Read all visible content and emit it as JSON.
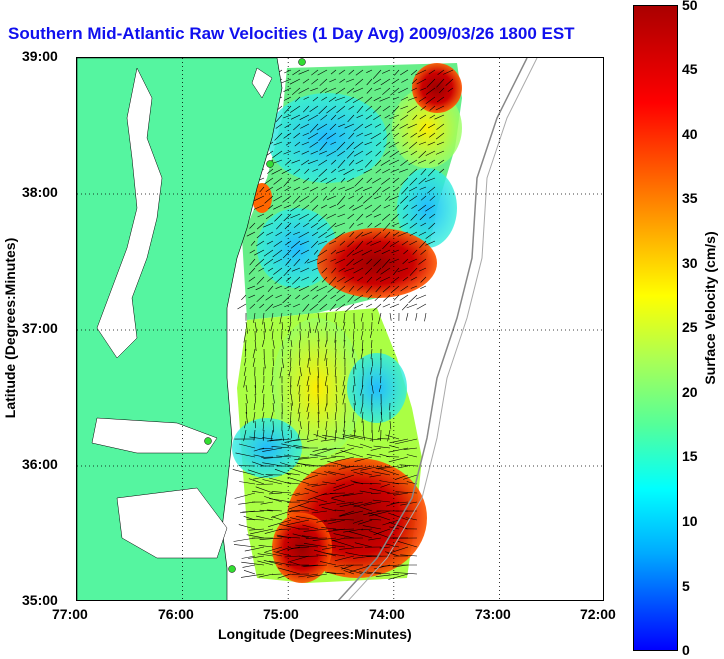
{
  "title": "Southern Mid-Atlantic Raw Velocities (1 Day Avg) 2009/03/26 1800 EST",
  "map": {
    "xlabel": "Longitude (Degrees:Minutes)",
    "ylabel": "Latitude (Degrees:Minutes)",
    "lon_range": [
      -77,
      -72
    ],
    "lat_range": [
      35,
      39
    ],
    "x_ticks": [
      "77:00",
      "76:00",
      "75:00",
      "74:00",
      "73:00",
      "72:00"
    ],
    "y_ticks": [
      "39:00",
      "38:00",
      "37:00",
      "36:00",
      "35:00"
    ],
    "grid": "dotted",
    "land_color": "#55f5a0",
    "station_color": "#33dd33"
  },
  "colorbar": {
    "label": "Surface Velocity (cm/s)",
    "ticks": [
      "50",
      "45",
      "40",
      "35",
      "30",
      "25",
      "20",
      "15",
      "10",
      "5",
      "0"
    ],
    "range": [
      0,
      50
    ]
  },
  "chart_data": {
    "type": "heatmap",
    "title": "Southern Mid-Atlantic Raw Velocities (1 Day Avg) 2009/03/26 1800 EST",
    "xlabel": "Longitude (Degrees:Minutes)",
    "ylabel": "Latitude (Degrees:Minutes)",
    "xlim": [
      -77,
      -72
    ],
    "ylim": [
      35,
      39
    ],
    "zlabel": "Surface Velocity (cm/s)",
    "zlim": [
      0,
      50
    ],
    "regions": [
      {
        "lon": -74.3,
        "lat": 38.6,
        "speed": 12
      },
      {
        "lon": -73.7,
        "lat": 38.9,
        "speed": 45
      },
      {
        "lon": -73.7,
        "lat": 38.4,
        "speed": 25
      },
      {
        "lon": -74.0,
        "lat": 37.6,
        "speed": 42
      },
      {
        "lon": -74.9,
        "lat": 37.9,
        "speed": 10
      },
      {
        "lon": -74.7,
        "lat": 37.4,
        "speed": 22
      },
      {
        "lon": -74.9,
        "lat": 36.8,
        "speed": 25
      },
      {
        "lon": -74.5,
        "lat": 36.5,
        "speed": 15
      },
      {
        "lon": -75.1,
        "lat": 36.3,
        "speed": 20
      },
      {
        "lon": -74.2,
        "lat": 35.6,
        "speed": 48
      },
      {
        "lon": -74.8,
        "lat": 35.4,
        "speed": 44
      }
    ]
  }
}
